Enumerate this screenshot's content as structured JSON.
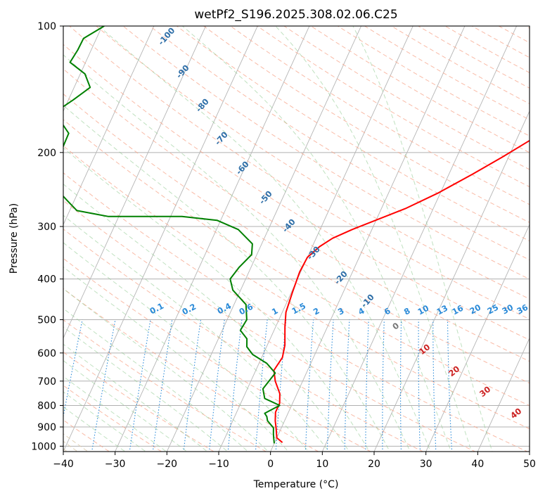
{
  "chart_data": {
    "type": "skew-t",
    "title": "wetPf2_S196.2025.308.02.06.C25",
    "xlabel": "Temperature (°C)",
    "ylabel": "Pressure (hPa)",
    "xlim": [
      -40,
      50
    ],
    "ylim": [
      1030,
      100
    ],
    "y_scale": "log",
    "grid": true,
    "x_ticks": [
      "−40",
      "−30",
      "−20",
      "−10",
      "0",
      "10",
      "20",
      "30",
      "40",
      "50"
    ],
    "y_ticks": [
      "100",
      "200",
      "300",
      "400",
      "500",
      "600",
      "700",
      "800",
      "900",
      "1000"
    ],
    "series": [
      {
        "color": "#ff0000",
        "points": [
          [
            1.5,
            980
          ],
          [
            0,
            955
          ],
          [
            -0.5,
            930
          ],
          [
            -1,
            905
          ],
          [
            -1.8,
            870
          ],
          [
            -2.5,
            830
          ],
          [
            -2.5,
            790
          ],
          [
            -3.3,
            750
          ],
          [
            -5.3,
            700
          ],
          [
            -6.5,
            660
          ],
          [
            -6.0,
            615
          ],
          [
            -6.6,
            575
          ],
          [
            -8.2,
            520
          ],
          [
            -9.3,
            480
          ],
          [
            -9.8,
            430
          ],
          [
            -10.2,
            385
          ],
          [
            -10.0,
            355
          ],
          [
            -8.6,
            335
          ],
          [
            -6.8,
            320
          ],
          [
            -3.8,
            305
          ],
          [
            -0.1,
            290
          ],
          [
            4.6,
            272
          ],
          [
            9.5,
            250
          ],
          [
            14.6,
            225
          ],
          [
            18.8,
            205
          ],
          [
            22.9,
            186
          ],
          [
            26.8,
            168
          ],
          [
            28.5,
            153
          ],
          [
            28.8,
            140
          ],
          [
            30.2,
            128
          ],
          [
            33.0,
            118
          ],
          [
            36.3,
            112
          ],
          [
            38.1,
            106
          ],
          [
            40,
            100
          ]
        ]
      },
      {
        "color": "#008000",
        "points": [
          [
            0,
            985
          ],
          [
            -0.5,
            960
          ],
          [
            -1,
            935
          ],
          [
            -1.5,
            905
          ],
          [
            -3.3,
            870
          ],
          [
            -3.8,
            850
          ],
          [
            -4.5,
            835
          ],
          [
            -2.3,
            800
          ],
          [
            -5.8,
            770
          ],
          [
            -7.0,
            730
          ],
          [
            -6.5,
            700
          ],
          [
            -6.0,
            670
          ],
          [
            -8.5,
            635
          ],
          [
            -12.0,
            605
          ],
          [
            -13.8,
            580
          ],
          [
            -14.5,
            555
          ],
          [
            -16.5,
            530
          ],
          [
            -16.2,
            500
          ],
          [
            -17.7,
            460
          ],
          [
            -21.5,
            425
          ],
          [
            -23.0,
            400
          ],
          [
            -22.3,
            375
          ],
          [
            -21.0,
            350
          ],
          [
            -21.8,
            330
          ],
          [
            -25.8,
            305
          ],
          [
            -30.7,
            290
          ],
          [
            -37.8,
            284
          ],
          [
            -45.2,
            284
          ],
          [
            -52.0,
            284
          ],
          [
            -58.6,
            275
          ],
          [
            -61.4,
            260
          ],
          [
            -64.9,
            242
          ],
          [
            -67.2,
            225
          ],
          [
            -67.0,
            210
          ],
          [
            -66.9,
            195
          ],
          [
            -67.0,
            180
          ],
          [
            -70.0,
            167
          ],
          [
            -71.2,
            159
          ],
          [
            -69.1,
            150
          ],
          [
            -66.9,
            140
          ],
          [
            -69.1,
            130
          ],
          [
            -73.0,
            122
          ],
          [
            -72.6,
            114
          ],
          [
            -72.5,
            107
          ],
          [
            -69.6,
            100
          ]
        ]
      }
    ],
    "dry_adiabat_labels": [
      "-100",
      "-90",
      "-80",
      "-70",
      "-60",
      "-50",
      "-40",
      "-30",
      "-20",
      "-10"
    ],
    "mixing_ratio_labels": [
      "0.1",
      "0.2",
      "0.4",
      "0.6",
      "1",
      "1.5",
      "2",
      "3",
      "4",
      "6",
      "8",
      "10",
      "13",
      "16",
      "20",
      "25",
      "30",
      "36"
    ],
    "moist_adiabat_labels": [
      "0",
      "10",
      "20",
      "30",
      "40"
    ]
  }
}
